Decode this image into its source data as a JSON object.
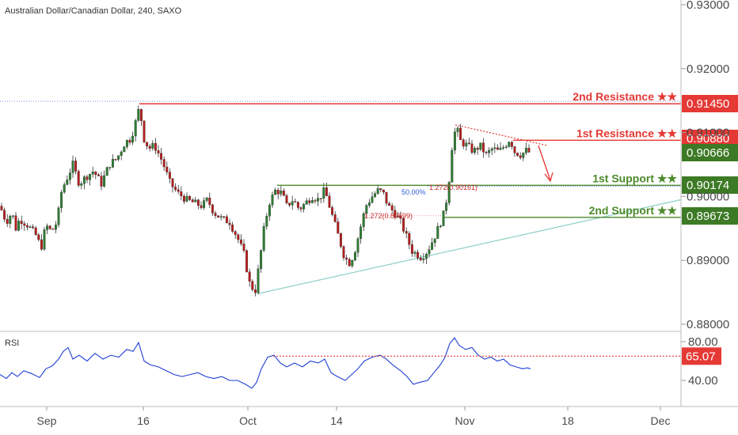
{
  "title": "Australian Dollar/Canadian Dollar, 240, SAXO",
  "colors": {
    "up": "#2e7d32",
    "down": "#b71c1c",
    "resistance": "#e53935",
    "support": "#4c8a2a",
    "trend": "#8fd0c6",
    "rsi": "#1f3fd6",
    "grid": "#d9d9d9"
  },
  "chart_data": [
    {
      "type": "candlestick",
      "title": "Australian Dollar/Canadian Dollar, 240, SAXO",
      "x_ticks": [
        "Sep",
        "16",
        "Oct",
        "14",
        "Nov",
        "18",
        "Dec"
      ],
      "y_ticks": [
        "0.93000",
        "0.92000",
        "0.91000",
        "0.90000",
        "0.89000",
        "0.88000"
      ],
      "ylim": [
        0.88,
        0.93
      ],
      "price_path": [
        [
          0,
          0.8985
        ],
        [
          8,
          0.896
        ],
        [
          15,
          0.8975
        ],
        [
          20,
          0.895
        ],
        [
          25,
          0.8965
        ],
        [
          35,
          0.8955
        ],
        [
          45,
          0.894
        ],
        [
          52,
          0.892
        ],
        [
          58,
          0.8955
        ],
        [
          65,
          0.8945
        ],
        [
          72,
          0.896
        ],
        [
          78,
          0.901
        ],
        [
          85,
          0.903
        ],
        [
          92,
          0.905
        ],
        [
          100,
          0.902
        ],
        [
          108,
          0.903
        ],
        [
          118,
          0.904
        ],
        [
          128,
          0.902
        ],
        [
          138,
          0.905
        ],
        [
          148,
          0.906
        ],
        [
          158,
          0.9085
        ],
        [
          165,
          0.909
        ],
        [
          170,
          0.911
        ],
        [
          176,
          0.914
        ],
        [
          182,
          0.909
        ],
        [
          188,
          0.9075
        ],
        [
          195,
          0.908
        ],
        [
          205,
          0.9055
        ],
        [
          215,
          0.902
        ],
        [
          225,
          0.9005
        ],
        [
          235,
          0.8995
        ],
        [
          245,
          0.899
        ],
        [
          255,
          0.8985
        ],
        [
          262,
          0.8995
        ],
        [
          270,
          0.8975
        ],
        [
          280,
          0.8965
        ],
        [
          290,
          0.896
        ],
        [
          300,
          0.8935
        ],
        [
          308,
          0.891
        ],
        [
          315,
          0.8865
        ],
        [
          322,
          0.885
        ],
        [
          328,
          0.89
        ],
        [
          334,
          0.8955
        ],
        [
          340,
          0.899
        ],
        [
          348,
          0.901
        ],
        [
          356,
          0.9005
        ],
        [
          362,
          0.8985
        ],
        [
          370,
          0.8995
        ],
        [
          378,
          0.898
        ],
        [
          386,
          0.899
        ],
        [
          394,
          0.9
        ],
        [
          402,
          0.8995
        ],
        [
          410,
          0.901
        ],
        [
          416,
          0.8985
        ],
        [
          422,
          0.896
        ],
        [
          428,
          0.8935
        ],
        [
          435,
          0.8905
        ],
        [
          442,
          0.8895
        ],
        [
          448,
          0.8915
        ],
        [
          455,
          0.895
        ],
        [
          462,
          0.8985
        ],
        [
          470,
          0.9
        ],
        [
          478,
          0.901
        ],
        [
          484,
          0.9005
        ],
        [
          490,
          0.8985
        ],
        [
          498,
          0.8975
        ],
        [
          506,
          0.896
        ],
        [
          514,
          0.8935
        ],
        [
          520,
          0.8915
        ],
        [
          526,
          0.891
        ],
        [
          532,
          0.8905
        ],
        [
          540,
          0.8915
        ],
        [
          548,
          0.8935
        ],
        [
          555,
          0.8955
        ],
        [
          561,
          0.8975
        ],
        [
          566,
          0.901
        ],
        [
          571,
          0.908
        ],
        [
          576,
          0.911
        ],
        [
          582,
          0.9085
        ],
        [
          590,
          0.908
        ],
        [
          598,
          0.907
        ],
        [
          606,
          0.908
        ],
        [
          614,
          0.9065
        ],
        [
          622,
          0.9075
        ],
        [
          630,
          0.907
        ],
        [
          638,
          0.908
        ],
        [
          644,
          0.909
        ],
        [
          650,
          0.907
        ],
        [
          658,
          0.9065
        ],
        [
          664,
          0.9072
        ],
        [
          670,
          0.9068
        ]
      ],
      "levels": [
        {
          "name": "2nd Resistance",
          "stars": "★★",
          "value": "0.91450",
          "kind": "resistance",
          "price": 0.9145
        },
        {
          "name": "1st Resistance",
          "stars": "★★",
          "value": "0.90880",
          "kind": "resistance",
          "price": 0.9088
        },
        {
          "name": "",
          "stars": "",
          "value": "0.90666",
          "kind": "current",
          "price": 0.90666
        },
        {
          "name": "1st Support",
          "stars": "★★",
          "value": "0.90174",
          "kind": "support",
          "price": 0.90174
        },
        {
          "name": "2nd Support",
          "stars": "★★",
          "value": "0.89673",
          "kind": "support",
          "price": 0.89673
        }
      ],
      "annotations": {
        "fib_50": "50.00%",
        "ext_1": "1.272(0.90161)",
        "ext_2": "1.272(0.89699)"
      }
    },
    {
      "type": "line",
      "title": "RSI",
      "y_ticks": [
        "80.00",
        "40.00"
      ],
      "ylim": [
        25,
        90
      ],
      "threshold": "65.07",
      "threshold_value": 65.07,
      "rsi_path": [
        [
          0,
          46
        ],
        [
          8,
          42
        ],
        [
          15,
          48
        ],
        [
          22,
          44
        ],
        [
          30,
          50
        ],
        [
          40,
          47
        ],
        [
          50,
          43
        ],
        [
          58,
          52
        ],
        [
          66,
          55
        ],
        [
          74,
          62
        ],
        [
          80,
          70
        ],
        [
          86,
          74
        ],
        [
          92,
          62
        ],
        [
          100,
          66
        ],
        [
          110,
          60
        ],
        [
          120,
          68
        ],
        [
          130,
          62
        ],
        [
          140,
          66
        ],
        [
          150,
          64
        ],
        [
          160,
          72
        ],
        [
          168,
          70
        ],
        [
          175,
          79
        ],
        [
          182,
          60
        ],
        [
          190,
          56
        ],
        [
          200,
          54
        ],
        [
          210,
          50
        ],
        [
          220,
          46
        ],
        [
          230,
          44
        ],
        [
          240,
          46
        ],
        [
          250,
          48
        ],
        [
          260,
          44
        ],
        [
          270,
          42
        ],
        [
          280,
          44
        ],
        [
          290,
          40
        ],
        [
          300,
          40
        ],
        [
          310,
          36
        ],
        [
          318,
          32
        ],
        [
          324,
          38
        ],
        [
          330,
          52
        ],
        [
          338,
          64
        ],
        [
          346,
          66
        ],
        [
          354,
          58
        ],
        [
          362,
          54
        ],
        [
          372,
          58
        ],
        [
          382,
          54
        ],
        [
          392,
          60
        ],
        [
          402,
          58
        ],
        [
          410,
          62
        ],
        [
          418,
          48
        ],
        [
          426,
          44
        ],
        [
          436,
          40
        ],
        [
          444,
          46
        ],
        [
          452,
          52
        ],
        [
          460,
          60
        ],
        [
          470,
          64
        ],
        [
          480,
          66
        ],
        [
          488,
          62
        ],
        [
          496,
          56
        ],
        [
          506,
          50
        ],
        [
          514,
          44
        ],
        [
          522,
          36
        ],
        [
          530,
          38
        ],
        [
          540,
          40
        ],
        [
          548,
          48
        ],
        [
          556,
          56
        ],
        [
          562,
          64
        ],
        [
          568,
          78
        ],
        [
          574,
          84
        ],
        [
          580,
          76
        ],
        [
          588,
          72
        ],
        [
          596,
          74
        ],
        [
          604,
          66
        ],
        [
          612,
          62
        ],
        [
          620,
          64
        ],
        [
          628,
          60
        ],
        [
          636,
          62
        ],
        [
          644,
          56
        ],
        [
          652,
          54
        ],
        [
          660,
          52
        ],
        [
          666,
          53
        ],
        [
          670,
          52
        ]
      ]
    }
  ]
}
